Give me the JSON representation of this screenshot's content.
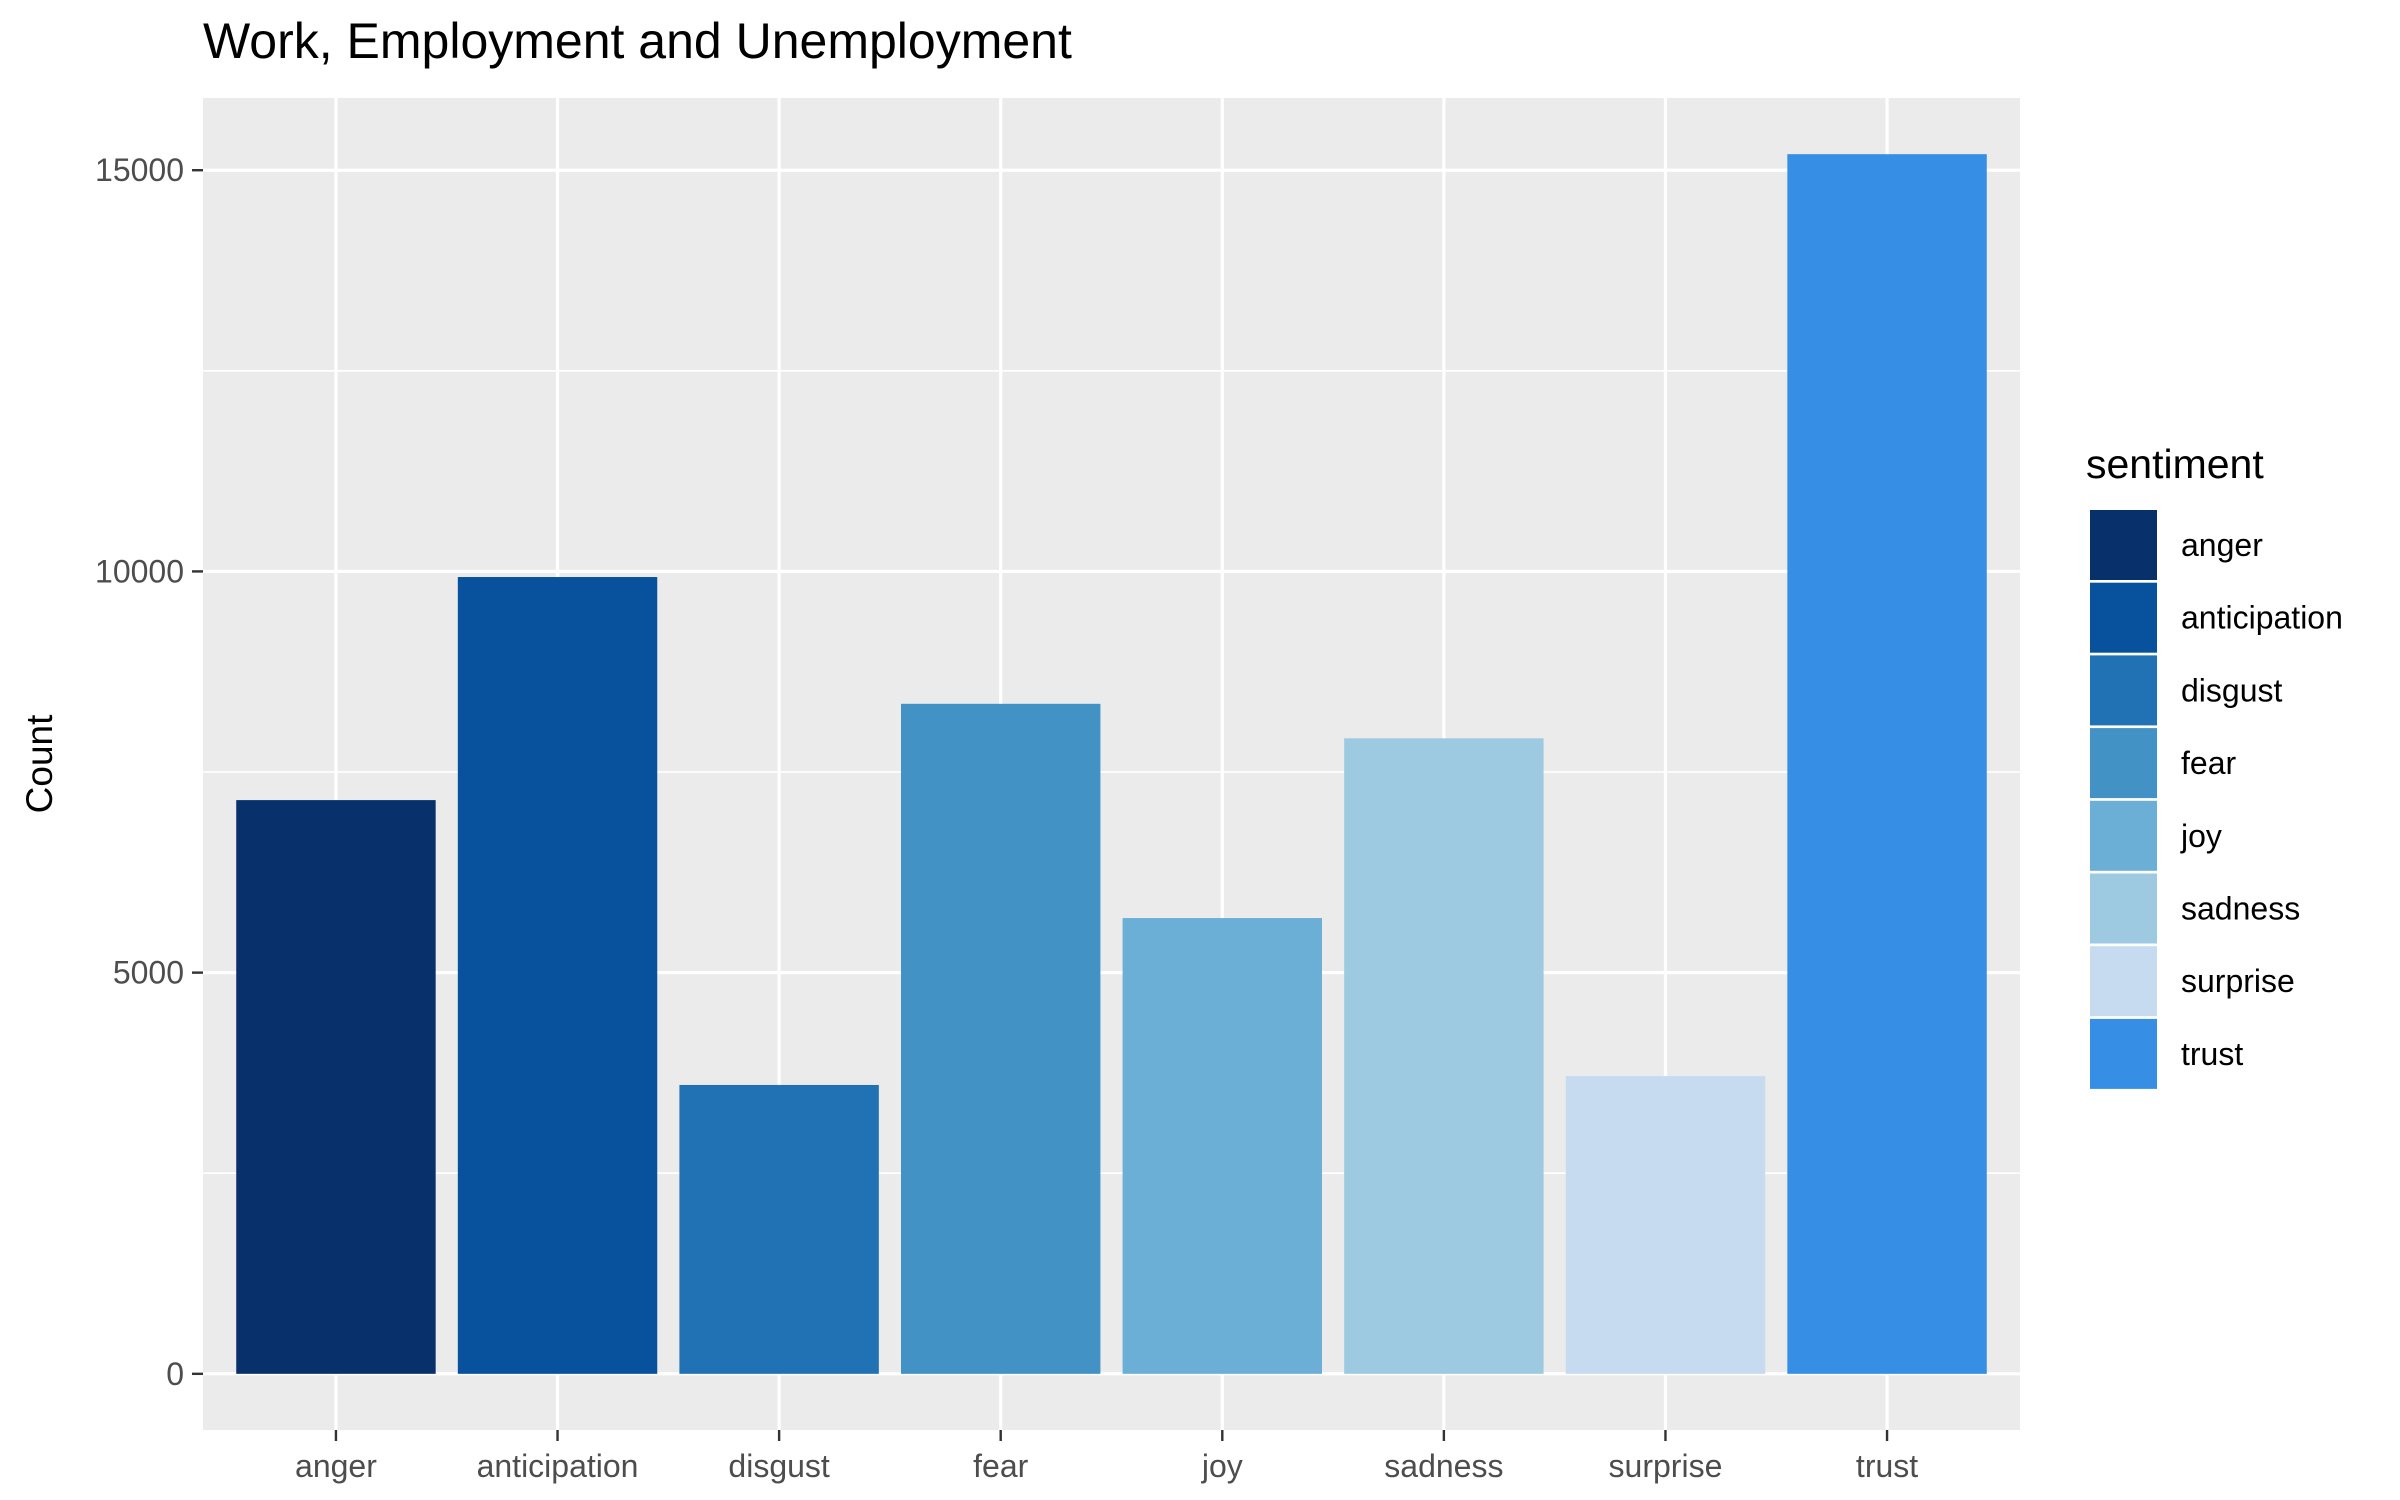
{
  "chart_data": {
    "type": "bar",
    "title": "Work, Employment and Unemployment",
    "xlabel": "",
    "ylabel": "Count",
    "categories": [
      "anger",
      "anticipation",
      "disgust",
      "fear",
      "joy",
      "sadness",
      "surprise",
      "trust"
    ],
    "values": [
      7150,
      9930,
      3600,
      8350,
      5680,
      7920,
      3710,
      15200
    ],
    "colors": [
      "#08306B",
      "#08519C",
      "#2171B5",
      "#4292C6",
      "#6BAED6",
      "#9ECAE1",
      "#C6DBEF",
      "#368FE5"
    ],
    "ylim": [
      -700,
      15900
    ],
    "yticks": [
      0,
      5000,
      10000,
      15000
    ],
    "ytick_labels": [
      "0",
      "5000",
      "10000",
      "15000"
    ],
    "grid": true,
    "panel_background": "#EBEBEB",
    "legend": {
      "title": "sentiment",
      "position": "right",
      "items": [
        "anger",
        "anticipation",
        "disgust",
        "fear",
        "joy",
        "sadness",
        "surprise",
        "trust"
      ]
    }
  }
}
